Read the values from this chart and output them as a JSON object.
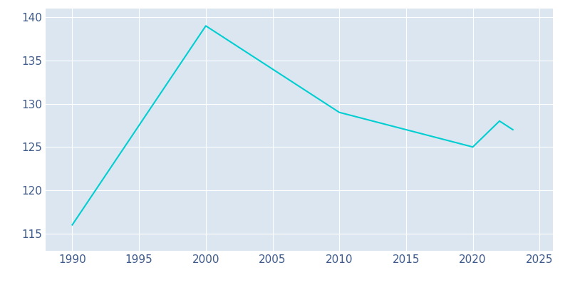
{
  "years": [
    1990,
    2000,
    2010,
    2015,
    2020,
    2022,
    2023
  ],
  "population": [
    116,
    139,
    129,
    127,
    125,
    128,
    127
  ],
  "line_color": "#00CED1",
  "figure_background_color": "#ffffff",
  "plot_background_color": "#dce6f1",
  "xlim": [
    1988,
    2026
  ],
  "ylim": [
    113,
    141
  ],
  "yticks": [
    115,
    120,
    125,
    130,
    135,
    140
  ],
  "xticks": [
    1990,
    1995,
    2000,
    2005,
    2010,
    2015,
    2020,
    2025
  ],
  "line_width": 1.5,
  "grid_color": "#ffffff",
  "grid_alpha": 1.0,
  "tick_color": "#3d5a8a",
  "label_fontsize": 11
}
